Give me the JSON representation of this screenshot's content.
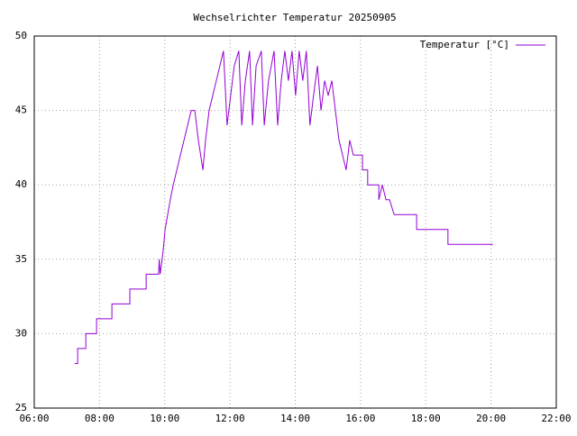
{
  "chart_data": {
    "type": "line",
    "title": "Wechselrichter Temperatur 20250905",
    "x": [
      7.24,
      7.33,
      7.33,
      7.58,
      7.58,
      7.91,
      7.91,
      8.38,
      8.38,
      8.93,
      8.93,
      9.43,
      9.43,
      9.81,
      9.83,
      9.86,
      9.92,
      9.97,
      10.01,
      10.09,
      10.17,
      10.26,
      10.37,
      10.48,
      10.59,
      10.7,
      10.81,
      10.92,
      11.03,
      11.17,
      11.25,
      11.36,
      11.47,
      11.58,
      11.69,
      11.8,
      11.91,
      12.02,
      12.13,
      12.27,
      12.36,
      12.47,
      12.6,
      12.69,
      12.8,
      12.96,
      13.05,
      13.18,
      13.35,
      13.46,
      13.57,
      13.68,
      13.79,
      13.9,
      14.01,
      14.12,
      14.23,
      14.34,
      14.45,
      14.56,
      14.68,
      14.79,
      14.9,
      15.01,
      15.12,
      15.23,
      15.34,
      15.45,
      15.56,
      15.67,
      15.78,
      16.06,
      16.06,
      16.22,
      16.22,
      16.56,
      16.56,
      16.67,
      16.78,
      16.89,
      17.03,
      17.72,
      17.72,
      18.68,
      18.68,
      20.06
    ],
    "series": [
      {
        "name": "Temperatur [°C]",
        "color": "#9400d3",
        "values": [
          28,
          28,
          29,
          29,
          30,
          30,
          31,
          31,
          32,
          32,
          33,
          33,
          34,
          34,
          35,
          34,
          35,
          36,
          37,
          38,
          39,
          40,
          41,
          42,
          43,
          44,
          45,
          45,
          43,
          41,
          43,
          45,
          46,
          47,
          48,
          49,
          44,
          46,
          48,
          49,
          44,
          47,
          49,
          44,
          48,
          49,
          44,
          47,
          49,
          44,
          47,
          49,
          47,
          49,
          46,
          49,
          47,
          49,
          44,
          46,
          48,
          45,
          47,
          46,
          47,
          45,
          43,
          42,
          41,
          43,
          42,
          42,
          41,
          41,
          40,
          40,
          39,
          40,
          39,
          39,
          38,
          38,
          37,
          37,
          36,
          36
        ]
      }
    ],
    "xlim": [
      6,
      22
    ],
    "xticks": [
      {
        "value": 6,
        "label": "06:00"
      },
      {
        "value": 8,
        "label": "08:00"
      },
      {
        "value": 10,
        "label": "10:00"
      },
      {
        "value": 12,
        "label": "12:00"
      },
      {
        "value": 14,
        "label": "14:00"
      },
      {
        "value": 16,
        "label": "16:00"
      },
      {
        "value": 18,
        "label": "18:00"
      },
      {
        "value": 20,
        "label": "20:00"
      },
      {
        "value": 22,
        "label": "22:00"
      }
    ],
    "ylim": [
      25,
      50
    ],
    "yticks": [
      25,
      30,
      35,
      40,
      45,
      50
    ],
    "grid": true,
    "legend": "top-right"
  }
}
